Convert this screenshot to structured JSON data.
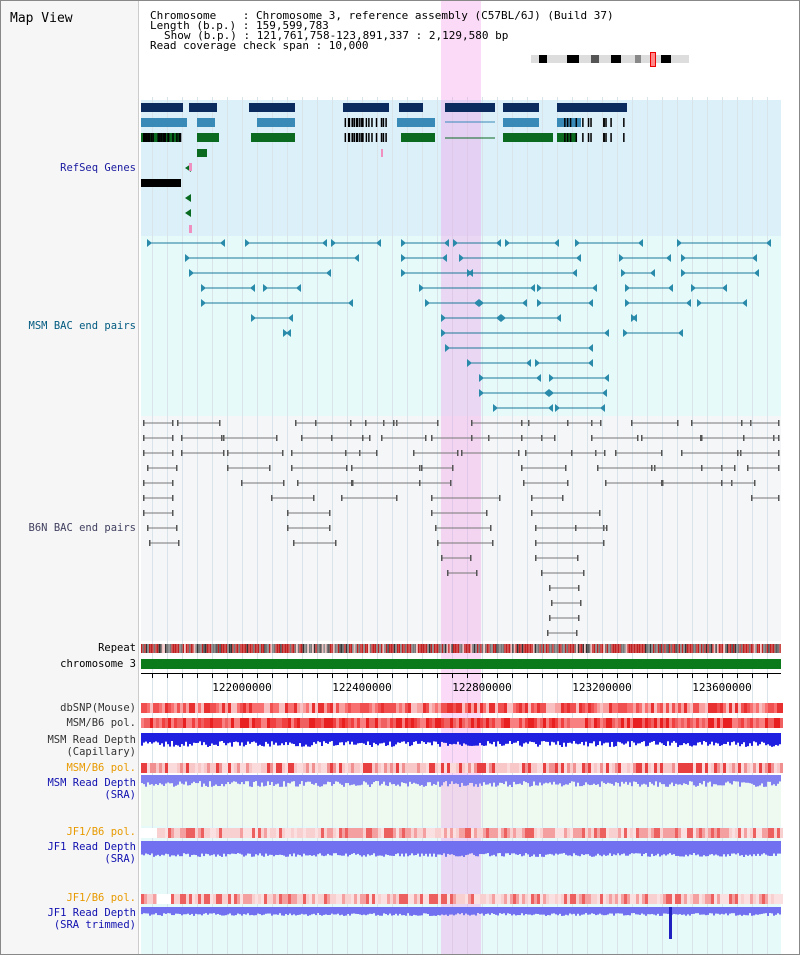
{
  "title": "Map View",
  "info": {
    "line1": "Chromosome    : Chromosome 3, reference assembly (C57BL/6J) (Build 37)",
    "line2": "Length (b.p.) : 159,599,783",
    "line3": "Show (b.p.) : 121,761,758-123,891,337 : 2,129,580 bp",
    "line4": "Read coverage check span : 10,000"
  },
  "tracks": {
    "refseq": "RefSeq Genes",
    "msm_bac": "MSM BAC end pairs",
    "b6n_bac": "B6N BAC end pairs",
    "repeat": "Repeat",
    "chromosome": "chromosome 3",
    "dbsnp": "dbSNP(Mouse)",
    "msm_pol": "MSM/B6 pol.",
    "msm_depth_cap": "MSM Read Depth\n(Capillary)",
    "msm_pol2": "MSM/B6 pol.",
    "msm_depth_sra": "MSM Read Depth\n(SRA)",
    "jf1_pol": "JF1/B6 pol.",
    "jf1_depth_sra": "JF1 Read Depth\n(SRA)",
    "jf1_pol2": "JF1/B6 pol.",
    "jf1_depth_trim": "JF1 Read Depth\n(SRA trimmed)"
  },
  "axis_ticks": [
    "122000000",
    "122400000",
    "122800000",
    "123200000",
    "123600000"
  ],
  "colors": {
    "refseq_bg": "#dcf0fa",
    "msm_bg": "#e6fafa",
    "b6n_bg": "#f4f6f8",
    "chromosome_bar": "#0a7a1a",
    "pol_red": "#e83030",
    "depth_blue": "#2a2ae0",
    "depth_light": "#8080f0",
    "highlight": "#f5c2ee"
  }
}
